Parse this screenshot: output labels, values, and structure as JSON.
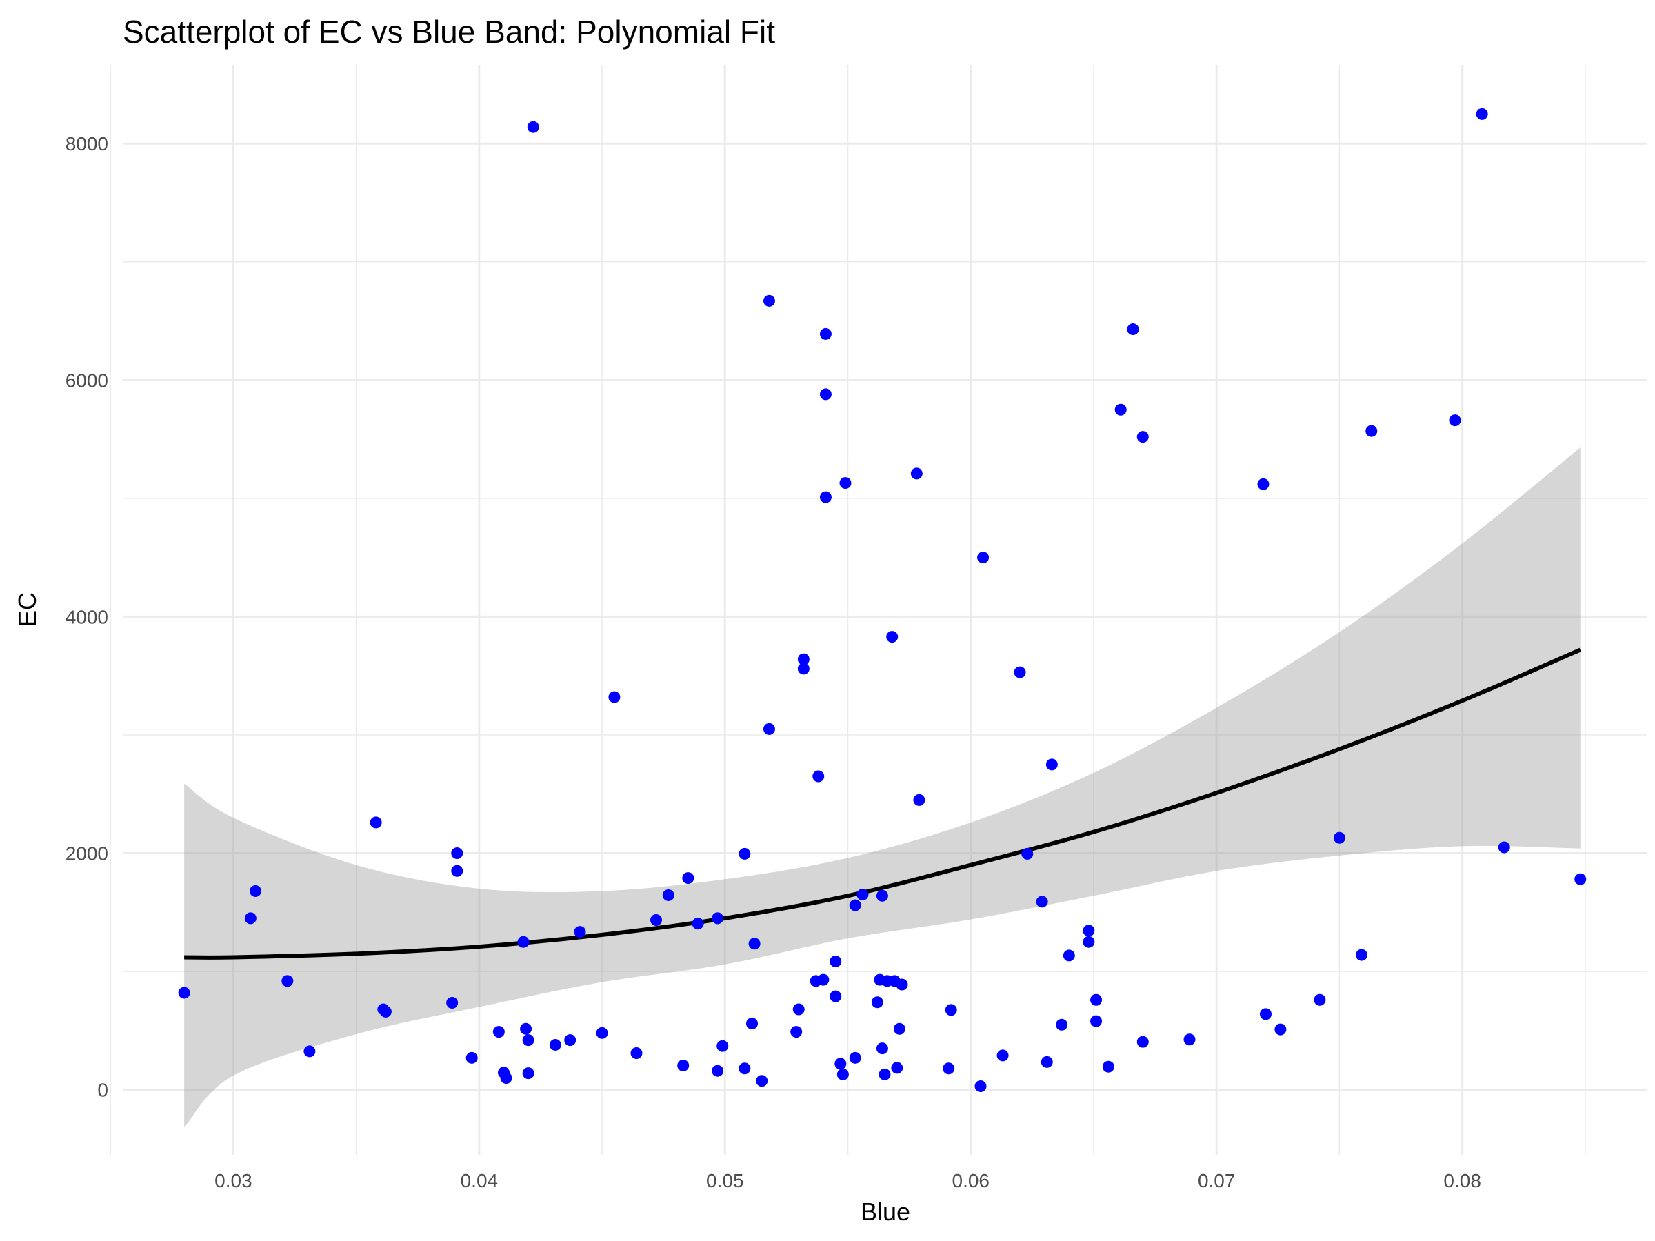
{
  "chart_data": {
    "type": "scatter",
    "title": "Scatterplot of EC vs Blue Band: Polynomial Fit",
    "xlabel": "Blue",
    "ylabel": "EC",
    "xlim": [
      0.0255,
      0.0875
    ],
    "ylim": [
      -550,
      8660
    ],
    "x_ticks": [
      0.03,
      0.04,
      0.05,
      0.06,
      0.07,
      0.08
    ],
    "x_tick_labels": [
      "0.03",
      "0.04",
      "0.05",
      "0.06",
      "0.07",
      "0.08"
    ],
    "x_minor_ticks": [
      0.025,
      0.035,
      0.045,
      0.055,
      0.065,
      0.075,
      0.085
    ],
    "y_ticks": [
      0,
      2000,
      4000,
      6000,
      8000
    ],
    "y_tick_labels": [
      "0",
      "2000",
      "4000",
      "6000",
      "8000"
    ],
    "y_minor_ticks": [
      1000,
      3000,
      5000,
      7000
    ],
    "grid": true,
    "point_color": "#0000ff",
    "fit_color": "#000000",
    "band_color": "#999999",
    "points": [
      {
        "x": 0.028,
        "y": 820
      },
      {
        "x": 0.0307,
        "y": 1450
      },
      {
        "x": 0.0309,
        "y": 1680
      },
      {
        "x": 0.0322,
        "y": 920
      },
      {
        "x": 0.0331,
        "y": 325
      },
      {
        "x": 0.0358,
        "y": 2260
      },
      {
        "x": 0.0361,
        "y": 680
      },
      {
        "x": 0.0362,
        "y": 660
      },
      {
        "x": 0.0389,
        "y": 735
      },
      {
        "x": 0.0391,
        "y": 2000
      },
      {
        "x": 0.0391,
        "y": 1850
      },
      {
        "x": 0.0397,
        "y": 270
      },
      {
        "x": 0.0408,
        "y": 490
      },
      {
        "x": 0.041,
        "y": 145
      },
      {
        "x": 0.0411,
        "y": 100
      },
      {
        "x": 0.0418,
        "y": 1250
      },
      {
        "x": 0.0419,
        "y": 515
      },
      {
        "x": 0.042,
        "y": 420
      },
      {
        "x": 0.042,
        "y": 140
      },
      {
        "x": 0.0422,
        "y": 8140
      },
      {
        "x": 0.0431,
        "y": 380
      },
      {
        "x": 0.0437,
        "y": 420
      },
      {
        "x": 0.0441,
        "y": 1335
      },
      {
        "x": 0.045,
        "y": 480
      },
      {
        "x": 0.0455,
        "y": 3320
      },
      {
        "x": 0.0464,
        "y": 310
      },
      {
        "x": 0.0472,
        "y": 1435
      },
      {
        "x": 0.0477,
        "y": 1645
      },
      {
        "x": 0.0483,
        "y": 205
      },
      {
        "x": 0.0485,
        "y": 1790
      },
      {
        "x": 0.0489,
        "y": 1405
      },
      {
        "x": 0.0497,
        "y": 1450
      },
      {
        "x": 0.0497,
        "y": 160
      },
      {
        "x": 0.0499,
        "y": 370
      },
      {
        "x": 0.0508,
        "y": 1995
      },
      {
        "x": 0.0508,
        "y": 180
      },
      {
        "x": 0.0511,
        "y": 560
      },
      {
        "x": 0.0512,
        "y": 1235
      },
      {
        "x": 0.0515,
        "y": 75
      },
      {
        "x": 0.0518,
        "y": 6670
      },
      {
        "x": 0.0518,
        "y": 3050
      },
      {
        "x": 0.0529,
        "y": 490
      },
      {
        "x": 0.053,
        "y": 680
      },
      {
        "x": 0.0532,
        "y": 3640
      },
      {
        "x": 0.0532,
        "y": 3560
      },
      {
        "x": 0.0537,
        "y": 920
      },
      {
        "x": 0.0538,
        "y": 2650
      },
      {
        "x": 0.054,
        "y": 930
      },
      {
        "x": 0.0541,
        "y": 6390
      },
      {
        "x": 0.0541,
        "y": 5880
      },
      {
        "x": 0.0541,
        "y": 5010
      },
      {
        "x": 0.0545,
        "y": 1085
      },
      {
        "x": 0.0545,
        "y": 790
      },
      {
        "x": 0.0547,
        "y": 220
      },
      {
        "x": 0.0548,
        "y": 130
      },
      {
        "x": 0.0549,
        "y": 5130
      },
      {
        "x": 0.0553,
        "y": 1560
      },
      {
        "x": 0.0553,
        "y": 270
      },
      {
        "x": 0.0556,
        "y": 1650
      },
      {
        "x": 0.0562,
        "y": 740
      },
      {
        "x": 0.0563,
        "y": 930
      },
      {
        "x": 0.0564,
        "y": 1640
      },
      {
        "x": 0.0564,
        "y": 350
      },
      {
        "x": 0.0565,
        "y": 130
      },
      {
        "x": 0.0566,
        "y": 920
      },
      {
        "x": 0.0568,
        "y": 3830
      },
      {
        "x": 0.0569,
        "y": 920
      },
      {
        "x": 0.057,
        "y": 185
      },
      {
        "x": 0.0571,
        "y": 515
      },
      {
        "x": 0.0572,
        "y": 890
      },
      {
        "x": 0.0578,
        "y": 5210
      },
      {
        "x": 0.0579,
        "y": 2450
      },
      {
        "x": 0.0591,
        "y": 180
      },
      {
        "x": 0.0592,
        "y": 675
      },
      {
        "x": 0.0604,
        "y": 30
      },
      {
        "x": 0.0605,
        "y": 4500
      },
      {
        "x": 0.0613,
        "y": 290
      },
      {
        "x": 0.062,
        "y": 3530
      },
      {
        "x": 0.0623,
        "y": 1995
      },
      {
        "x": 0.0629,
        "y": 1590
      },
      {
        "x": 0.0631,
        "y": 235
      },
      {
        "x": 0.0633,
        "y": 2750
      },
      {
        "x": 0.0637,
        "y": 550
      },
      {
        "x": 0.064,
        "y": 1135
      },
      {
        "x": 0.0648,
        "y": 1345
      },
      {
        "x": 0.0648,
        "y": 1250
      },
      {
        "x": 0.0651,
        "y": 760
      },
      {
        "x": 0.0651,
        "y": 580
      },
      {
        "x": 0.0656,
        "y": 195
      },
      {
        "x": 0.0661,
        "y": 5750
      },
      {
        "x": 0.0666,
        "y": 6430
      },
      {
        "x": 0.067,
        "y": 5520
      },
      {
        "x": 0.067,
        "y": 405
      },
      {
        "x": 0.0689,
        "y": 425
      },
      {
        "x": 0.0719,
        "y": 5120
      },
      {
        "x": 0.072,
        "y": 640
      },
      {
        "x": 0.0726,
        "y": 510
      },
      {
        "x": 0.0742,
        "y": 760
      },
      {
        "x": 0.075,
        "y": 2130
      },
      {
        "x": 0.0759,
        "y": 1140
      },
      {
        "x": 0.0763,
        "y": 5570
      },
      {
        "x": 0.0797,
        "y": 5660
      },
      {
        "x": 0.0808,
        "y": 8250
      },
      {
        "x": 0.0817,
        "y": 2050
      },
      {
        "x": 0.0848,
        "y": 1780
      }
    ],
    "fit": {
      "x": [
        0.028,
        0.03,
        0.035,
        0.04,
        0.045,
        0.05,
        0.055,
        0.06,
        0.065,
        0.07,
        0.075,
        0.08,
        0.0848
      ],
      "y": [
        1120,
        1120,
        1150,
        1210,
        1310,
        1450,
        1640,
        1900,
        2180,
        2510,
        2880,
        3290,
        3720
      ],
      "lower": [
        -320,
        120,
        470,
        700,
        910,
        1060,
        1280,
        1440,
        1640,
        1850,
        1980,
        2060,
        2040
      ],
      "upper": [
        2590,
        2300,
        1900,
        1700,
        1680,
        1780,
        1960,
        2260,
        2680,
        3230,
        3870,
        4620,
        5430
      ]
    }
  }
}
